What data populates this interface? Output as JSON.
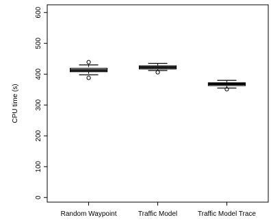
{
  "chart_data": {
    "type": "boxplot",
    "title": "",
    "xlabel": "",
    "ylabel": "CPU time (s)",
    "ylim": [
      -15,
      625
    ],
    "yticks": [
      0,
      100,
      200,
      300,
      400,
      500,
      600
    ],
    "categories": [
      "Random Waypoint",
      "Traffic Model",
      "Traffic Model Trace"
    ],
    "boxes": [
      {
        "whisker_low": 398,
        "q1": 408,
        "median": 413,
        "q3": 419,
        "whisker_high": 430,
        "outliers": [
          388,
          439
        ]
      },
      {
        "whisker_low": 412,
        "q1": 417,
        "median": 422,
        "q3": 427,
        "whisker_high": 435,
        "outliers": [
          406
        ]
      },
      {
        "whisker_low": 355,
        "q1": 363,
        "median": 368,
        "q3": 372,
        "whisker_high": 380,
        "outliers": [
          351
        ]
      }
    ],
    "grid": false,
    "legend": "none",
    "colors": {
      "stroke": "#000000",
      "box_fill": "#ffffff",
      "background": "#ffffff"
    }
  }
}
